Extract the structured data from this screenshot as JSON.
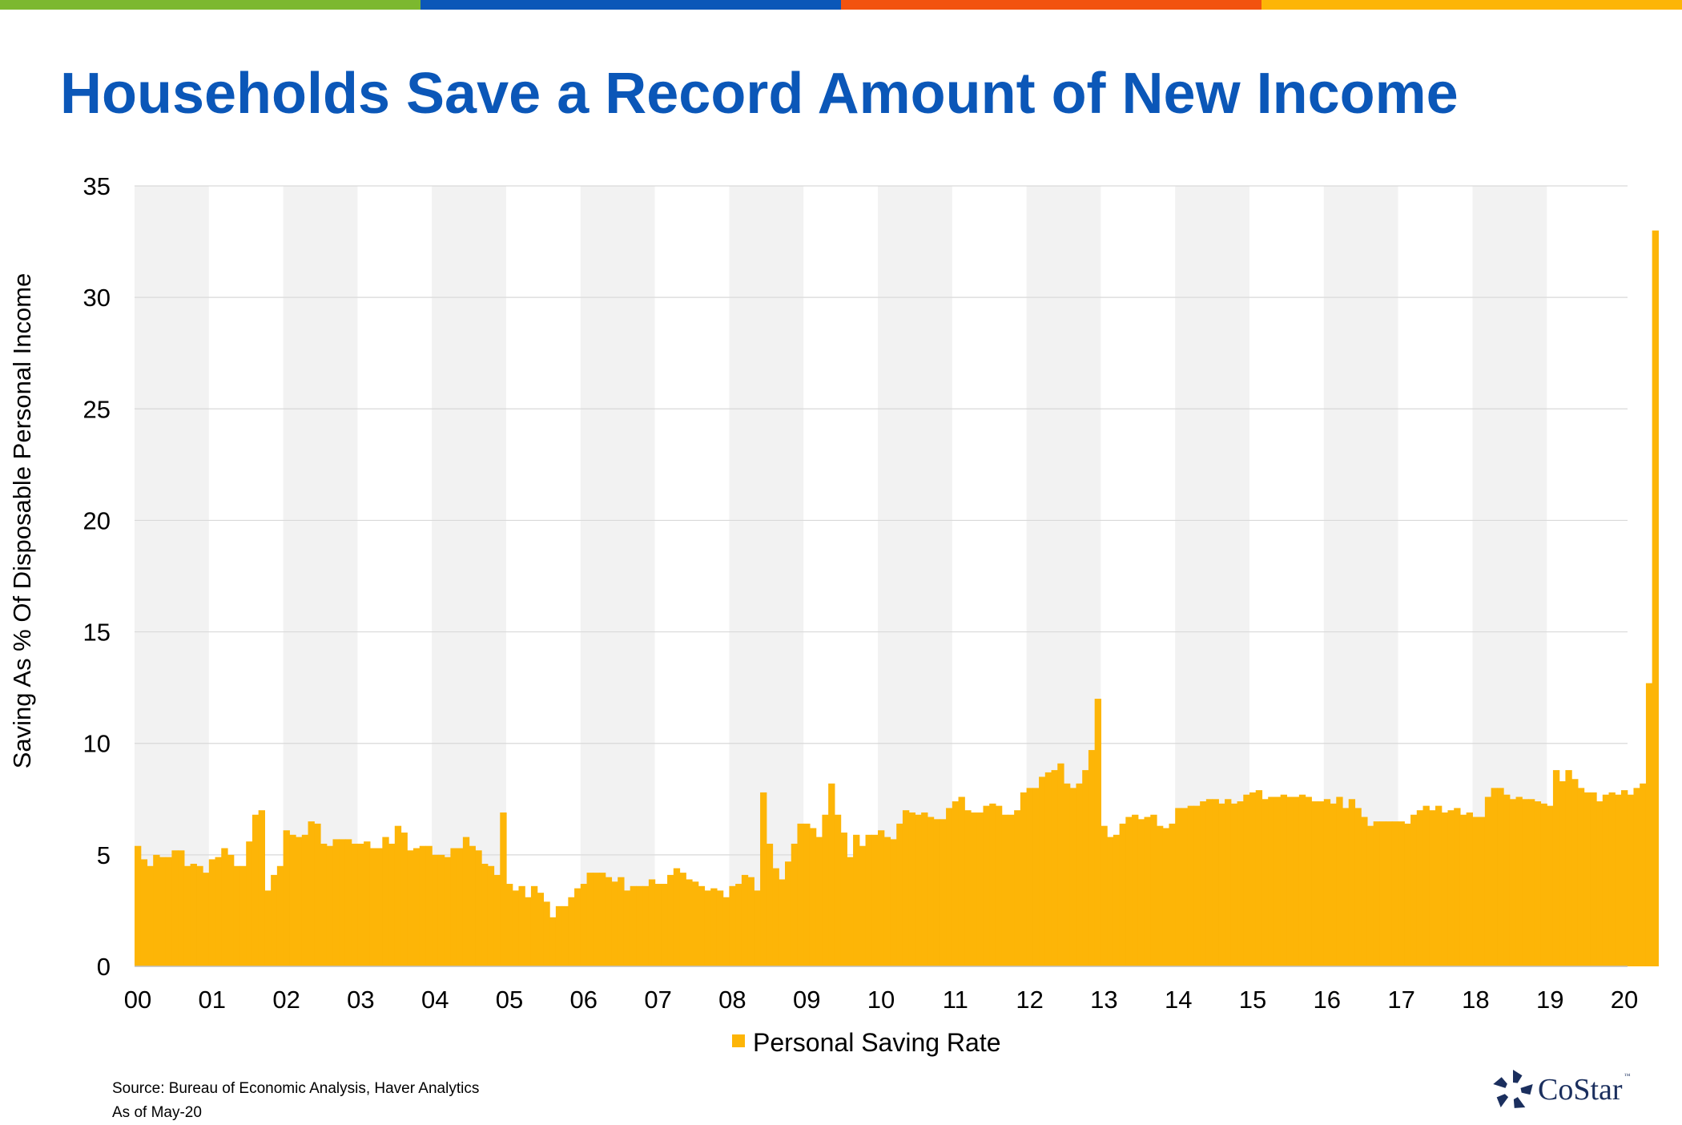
{
  "colors": {
    "title": "#0b57b8",
    "bar": "#FDB507",
    "shade": "#f2f2f2",
    "grid": "#d9d9d9",
    "strip": [
      "#7cb82f",
      "#0b57b8",
      "#f2530f",
      "#fdb507"
    ]
  },
  "title": "Households Save a Record Amount of New Income",
  "chart_data": {
    "type": "bar",
    "frequency": "monthly",
    "start": "Jan-2000",
    "end": "Apr-2020",
    "ylabel": "Saving As % Of Disposable Personal Income",
    "xlabel": "",
    "ylim": [
      0,
      35
    ],
    "yticks": [
      "0",
      "5",
      "10",
      "15",
      "20",
      "25",
      "30",
      "35"
    ],
    "year_ticks": [
      "00",
      "01",
      "02",
      "03",
      "04",
      "05",
      "06",
      "07",
      "08",
      "09",
      "10",
      "11",
      "12",
      "13",
      "14",
      "15",
      "16",
      "17",
      "18",
      "19",
      "20"
    ],
    "alternate_year_shading": true,
    "grid": true,
    "legend_position": "bottom-center",
    "series": [
      {
        "name": "Personal Saving Rate",
        "values": [
          5.4,
          4.8,
          4.5,
          5.0,
          4.9,
          4.9,
          5.2,
          5.2,
          4.5,
          4.6,
          4.5,
          4.2,
          4.8,
          4.9,
          5.3,
          5.0,
          4.5,
          4.5,
          5.6,
          6.8,
          7.0,
          3.4,
          4.1,
          4.5,
          6.1,
          5.9,
          5.8,
          5.9,
          6.5,
          6.4,
          5.5,
          5.4,
          5.7,
          5.7,
          5.7,
          5.5,
          5.5,
          5.6,
          5.3,
          5.3,
          5.8,
          5.5,
          6.3,
          6.0,
          5.2,
          5.3,
          5.4,
          5.4,
          5.0,
          5.0,
          4.9,
          5.3,
          5.3,
          5.8,
          5.4,
          5.2,
          4.6,
          4.5,
          4.1,
          6.9,
          3.7,
          3.4,
          3.6,
          3.1,
          3.6,
          3.3,
          2.9,
          2.2,
          2.7,
          2.7,
          3.1,
          3.5,
          3.7,
          4.2,
          4.2,
          4.2,
          4.0,
          3.8,
          4.0,
          3.4,
          3.6,
          3.6,
          3.6,
          3.9,
          3.7,
          3.7,
          4.1,
          4.4,
          4.2,
          3.9,
          3.8,
          3.6,
          3.4,
          3.5,
          3.4,
          3.1,
          3.6,
          3.7,
          4.1,
          4.0,
          3.4,
          7.8,
          5.5,
          4.4,
          3.9,
          4.7,
          5.5,
          6.4,
          6.4,
          6.2,
          5.8,
          6.8,
          8.2,
          6.8,
          6.0,
          4.9,
          5.9,
          5.4,
          5.9,
          5.9,
          6.1,
          5.8,
          5.7,
          6.4,
          7.0,
          6.9,
          6.8,
          6.9,
          6.7,
          6.6,
          6.6,
          7.1,
          7.4,
          7.6,
          7.0,
          6.9,
          6.9,
          7.2,
          7.3,
          7.2,
          6.8,
          6.8,
          7.0,
          7.8,
          8.0,
          8.0,
          8.5,
          8.7,
          8.8,
          9.1,
          8.2,
          8.0,
          8.2,
          8.8,
          9.7,
          12.0,
          6.3,
          5.8,
          5.9,
          6.4,
          6.7,
          6.8,
          6.6,
          6.7,
          6.8,
          6.3,
          6.2,
          6.4,
          7.1,
          7.1,
          7.2,
          7.2,
          7.4,
          7.5,
          7.5,
          7.3,
          7.5,
          7.3,
          7.4,
          7.7,
          7.8,
          7.9,
          7.5,
          7.6,
          7.6,
          7.7,
          7.6,
          7.6,
          7.7,
          7.6,
          7.4,
          7.4,
          7.5,
          7.3,
          7.6,
          7.1,
          7.5,
          7.1,
          6.7,
          6.3,
          6.5,
          6.5,
          6.5,
          6.5,
          6.5,
          6.4,
          6.8,
          7.0,
          7.2,
          7.0,
          7.2,
          6.9,
          7.0,
          7.1,
          6.8,
          6.9,
          6.7,
          6.7,
          7.6,
          8.0,
          8.0,
          7.7,
          7.5,
          7.6,
          7.5,
          7.5,
          7.4,
          7.3,
          7.2,
          8.8,
          8.3,
          8.8,
          8.4,
          8.0,
          7.8,
          7.8,
          7.4,
          7.7,
          7.8,
          7.7,
          7.9,
          7.7,
          8.0,
          8.2,
          12.7,
          33.0
        ]
      }
    ]
  },
  "legend": {
    "label": "Personal Saving Rate"
  },
  "source": {
    "line1": "Source: Bureau of Economic Analysis, Haver Analytics",
    "line2": "As of May-20"
  },
  "logo": {
    "name": "costar-logo",
    "text": "CoStar",
    "tm": "™"
  }
}
